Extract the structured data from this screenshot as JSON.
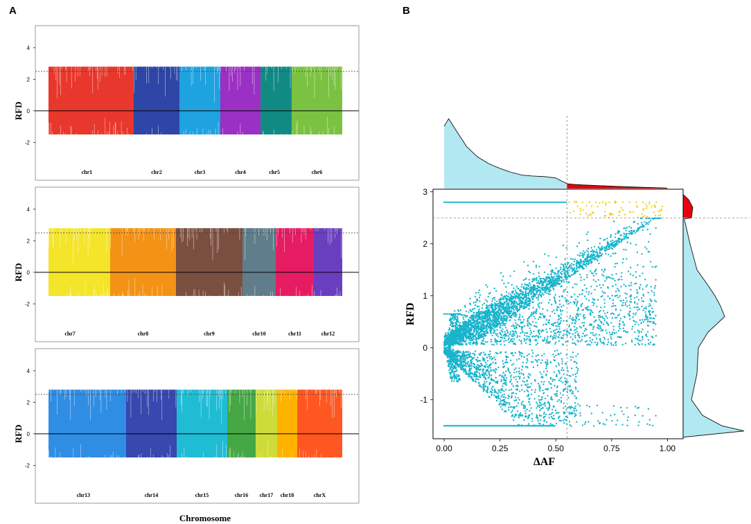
{
  "panel_a_label": "A",
  "panel_b_label": "B",
  "chart_data": [
    {
      "type": "manhattan-bar",
      "panel": "A",
      "ylabel": "RFD",
      "xlabel": "Chromosome",
      "ylim": [
        -4.4,
        5.4
      ],
      "yticks": [
        -2,
        0,
        2,
        4
      ],
      "threshold": 2.5,
      "rows": [
        {
          "chromosomes": [
            {
              "name": "chr1",
              "color": "#e8372c",
              "max": 2.8,
              "min": -1.5,
              "label_offset": 0.45
            },
            {
              "name": "chr2",
              "color": "#2e46a6",
              "max": 2.8,
              "min": -1.5,
              "label_offset": 0.5
            },
            {
              "name": "chr3",
              "color": "#1fa2e0",
              "max": 2.8,
              "min": -1.5,
              "label_offset": 0.5
            },
            {
              "name": "chr4",
              "color": "#9b30c4",
              "max": 2.8,
              "min": -1.5,
              "label_offset": 0.5
            },
            {
              "name": "chr5",
              "color": "#128a84",
              "max": 2.8,
              "min": -1.5,
              "label_offset": 0.45
            },
            {
              "name": "chr6",
              "color": "#7cc242",
              "max": 2.8,
              "min": -1.5,
              "label_offset": 0.5
            }
          ]
        },
        {
          "chromosomes": [
            {
              "name": "chr7",
              "color": "#f4e42a",
              "max": 2.8,
              "min": -1.5,
              "label_offset": 0.35
            },
            {
              "name": "chr8",
              "color": "#f39215",
              "max": 2.8,
              "min": -1.5,
              "label_offset": 0.5
            },
            {
              "name": "chr9",
              "color": "#7b4f40",
              "max": 2.8,
              "min": -1.5,
              "label_offset": 0.5
            },
            {
              "name": "chr10",
              "color": "#607d8b",
              "max": 2.8,
              "min": -1.5,
              "label_offset": 0.5
            },
            {
              "name": "chr11",
              "color": "#e61c63",
              "max": 2.8,
              "min": -1.5,
              "label_offset": 0.5
            },
            {
              "name": "chr12",
              "color": "#6a3fbf",
              "max": 2.8,
              "min": -1.5,
              "label_offset": 0.5
            }
          ]
        },
        {
          "chromosomes": [
            {
              "name": "chr13",
              "color": "#2f8de4",
              "max": 2.8,
              "min": -1.5,
              "label_offset": 0.45
            },
            {
              "name": "chr14",
              "color": "#3748ae",
              "max": 2.8,
              "min": -1.5,
              "label_offset": 0.5
            },
            {
              "name": "chr15",
              "color": "#20bcd4",
              "max": 2.8,
              "min": -1.5,
              "label_offset": 0.5
            },
            {
              "name": "chr16",
              "color": "#45a845",
              "max": 2.8,
              "min": -1.5,
              "label_offset": 0.5
            },
            {
              "name": "chr17",
              "color": "#cddc39",
              "max": 2.8,
              "min": -1.5,
              "label_offset": 0.5
            },
            {
              "name": "chr18",
              "color": "#ffb300",
              "max": 2.8,
              "min": -1.5,
              "label_offset": 0.5
            },
            {
              "name": "chrX",
              "color": "#ff5722",
              "max": 2.8,
              "min": -1.5,
              "label_offset": 0.5
            }
          ]
        }
      ]
    },
    {
      "type": "scatter-with-marginal-density",
      "panel": "B",
      "xlabel": "ΔAF",
      "ylabel": "RFD",
      "xlim": [
        -0.05,
        1.07
      ],
      "ylim": [
        -1.75,
        3.05
      ],
      "xticks": [
        0.0,
        0.25,
        0.5,
        0.75,
        1.0
      ],
      "xtick_labels": [
        "0.00",
        "0.25",
        "0.50",
        "0.75",
        "1.00"
      ],
      "yticks": [
        -1,
        0,
        1,
        2,
        3
      ],
      "ytick_labels": [
        "-1",
        "0",
        "1",
        "2",
        "3"
      ],
      "x_threshold": 0.55,
      "y_threshold": 2.5,
      "point_color": "#17b4cc",
      "highlight_color": "#f2d21b",
      "density_color": "#b2e8f2",
      "density_highlight_color": "#e8000b",
      "top_density": {
        "x": [
          0.0,
          0.02,
          0.05,
          0.1,
          0.15,
          0.2,
          0.25,
          0.3,
          0.35,
          0.4,
          0.45,
          0.5,
          0.55,
          0.6,
          0.7,
          0.8,
          0.9,
          1.0
        ],
        "density": [
          6.5,
          7.3,
          6.2,
          4.4,
          3.3,
          2.6,
          2.1,
          1.7,
          1.4,
          1.3,
          1.25,
          1.1,
          0.5,
          0.4,
          0.3,
          0.2,
          0.12,
          0.05
        ]
      },
      "right_density": {
        "y": [
          -1.72,
          -1.6,
          -1.5,
          -1.3,
          -1.0,
          -0.5,
          0.0,
          0.3,
          0.6,
          0.8,
          1.0,
          1.2,
          1.5,
          2.0,
          2.3,
          2.48,
          2.5,
          2.7,
          2.85,
          2.95
        ],
        "density": [
          0.0,
          2.2,
          1.4,
          0.7,
          0.3,
          0.5,
          0.55,
          0.9,
          1.5,
          1.35,
          1.15,
          0.9,
          0.5,
          0.25,
          0.12,
          0.04,
          0.3,
          0.35,
          0.2,
          0.0
        ]
      }
    }
  ]
}
